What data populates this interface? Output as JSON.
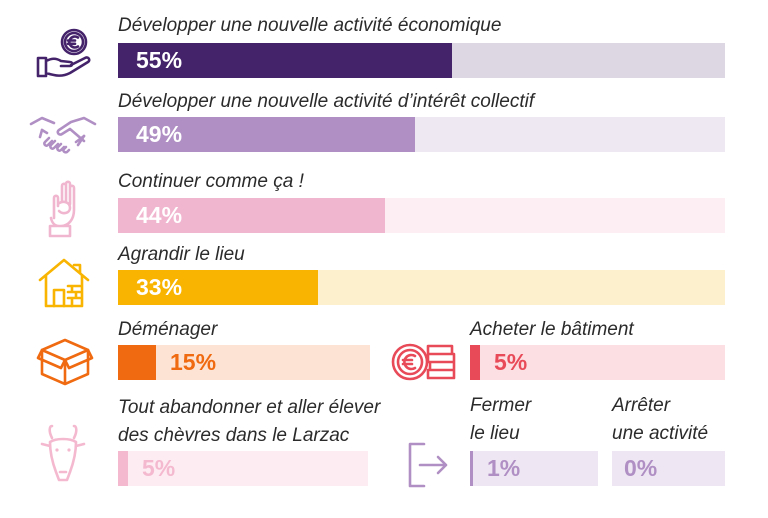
{
  "chart_data": {
    "type": "bar",
    "bars": [
      {
        "label": "Développer une nouvelle activité économique",
        "value": 55,
        "display": "55%",
        "color": "#45236b",
        "track_color": "#ddd7e3",
        "text_color": "#ffffff",
        "icon": "hand-euro-coin-icon"
      },
      {
        "label": "Développer une nouvelle activité d’intérêt collectif",
        "value": 49,
        "display": "49%",
        "color": "#b08fc4",
        "track_color": "#eee8f2",
        "text_color": "#ffffff",
        "icon": "handshake-icon"
      },
      {
        "label": "Continuer comme ça !",
        "value": 44,
        "display": "44%",
        "color": "#f1b6cf",
        "track_color": "#fceef3",
        "text_color": "#ffffff",
        "icon": "ok-hand-icon"
      },
      {
        "label": "Agrandir le lieu",
        "value": 33,
        "display": "33%",
        "color": "#f8b400",
        "track_color": "#fdf0cc",
        "text_color": "#ffffff",
        "icon": "house-bricks-icon"
      },
      {
        "label": "Déménager",
        "value": 15,
        "display": "15%",
        "color": "#ef6a10",
        "track_color": "#fde3d3",
        "text_color": "#ef6a10",
        "icon": "box-icon"
      },
      {
        "label": "Acheter le bâtiment",
        "value": 5,
        "display": "5%",
        "color": "#e84a58",
        "track_color": "#fcdfe2",
        "text_color": "#e84a58",
        "icon": "euro-coins-icon"
      },
      {
        "label": "Tout abandonner et aller élever\ndes chèvres dans le Larzac",
        "value": 5,
        "display": "5%",
        "color": "#f4b9cf",
        "track_color": "#fdecf2",
        "text_color": "#f4b9cf",
        "icon": "goat-icon"
      },
      {
        "label": "Fermer\nle lieu",
        "value": 1,
        "display": "1%",
        "color": "#b08fc4",
        "track_color": "#eee7f3",
        "text_color": "#b08fc4",
        "icon": "exit-door-icon"
      },
      {
        "label": "Arrêter\nune activité",
        "value": 0,
        "display": "0%",
        "color": "#b08fc4",
        "track_color": "#eee7f3",
        "text_color": "#b08fc4",
        "icon": ""
      }
    ]
  }
}
